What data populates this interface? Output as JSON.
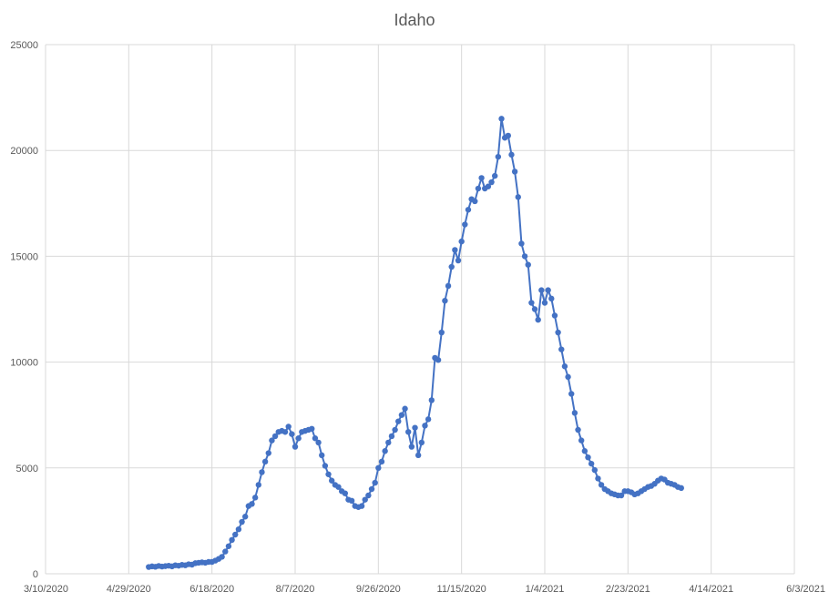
{
  "chart_data": {
    "type": "line",
    "title": "Idaho",
    "xlabel": "",
    "ylabel": "",
    "x_axis": {
      "type": "date",
      "min": "2020-03-10",
      "max": "2021-06-03",
      "ticks": [
        "2020-03-10",
        "2020-04-29",
        "2020-06-18",
        "2020-08-07",
        "2020-09-26",
        "2020-11-15",
        "2021-01-04",
        "2021-02-23",
        "2021-04-14",
        "2021-06-03"
      ],
      "tick_labels": [
        "3/10/2020",
        "4/29/2020",
        "6/18/2020",
        "8/7/2020",
        "9/26/2020",
        "11/15/2020",
        "1/4/2021",
        "2/23/2021",
        "4/14/2021",
        "6/3/2021"
      ]
    },
    "y_axis": {
      "min": 0,
      "max": 25000,
      "ticks": [
        0,
        5000,
        10000,
        15000,
        20000,
        25000
      ],
      "tick_labels": [
        "0",
        "5000",
        "10000",
        "15000",
        "20000",
        "25000"
      ]
    },
    "grid": true,
    "legend": "none",
    "colors": {
      "series": "#4472c4",
      "grid": "#d9d9d9",
      "text": "#595959"
    },
    "series": [
      {
        "marker": "circle",
        "points": [
          [
            "2020-05-11",
            320
          ],
          [
            "2020-05-13",
            350
          ],
          [
            "2020-05-15",
            330
          ],
          [
            "2020-05-17",
            370
          ],
          [
            "2020-05-19",
            340
          ],
          [
            "2020-05-21",
            360
          ],
          [
            "2020-05-23",
            380
          ],
          [
            "2020-05-25",
            350
          ],
          [
            "2020-05-27",
            400
          ],
          [
            "2020-05-29",
            380
          ],
          [
            "2020-05-31",
            420
          ],
          [
            "2020-06-02",
            400
          ],
          [
            "2020-06-04",
            450
          ],
          [
            "2020-06-06",
            430
          ],
          [
            "2020-06-08",
            500
          ],
          [
            "2020-06-10",
            520
          ],
          [
            "2020-06-12",
            540
          ],
          [
            "2020-06-14",
            520
          ],
          [
            "2020-06-16",
            560
          ],
          [
            "2020-06-18",
            560
          ],
          [
            "2020-06-20",
            620
          ],
          [
            "2020-06-22",
            700
          ],
          [
            "2020-06-24",
            800
          ],
          [
            "2020-06-26",
            1050
          ],
          [
            "2020-06-28",
            1300
          ],
          [
            "2020-06-30",
            1600
          ],
          [
            "2020-07-02",
            1850
          ],
          [
            "2020-07-04",
            2100
          ],
          [
            "2020-07-06",
            2450
          ],
          [
            "2020-07-08",
            2700
          ],
          [
            "2020-07-10",
            3200
          ],
          [
            "2020-07-12",
            3300
          ],
          [
            "2020-07-14",
            3600
          ],
          [
            "2020-07-16",
            4200
          ],
          [
            "2020-07-18",
            4800
          ],
          [
            "2020-07-20",
            5300
          ],
          [
            "2020-07-22",
            5700
          ],
          [
            "2020-07-24",
            6300
          ],
          [
            "2020-07-26",
            6500
          ],
          [
            "2020-07-28",
            6700
          ],
          [
            "2020-07-30",
            6750
          ],
          [
            "2020-08-01",
            6700
          ],
          [
            "2020-08-03",
            6950
          ],
          [
            "2020-08-05",
            6600
          ],
          [
            "2020-08-07",
            6000
          ],
          [
            "2020-08-09",
            6400
          ],
          [
            "2020-08-11",
            6700
          ],
          [
            "2020-08-13",
            6750
          ],
          [
            "2020-08-15",
            6800
          ],
          [
            "2020-08-17",
            6850
          ],
          [
            "2020-08-19",
            6400
          ],
          [
            "2020-08-21",
            6200
          ],
          [
            "2020-08-23",
            5600
          ],
          [
            "2020-08-25",
            5100
          ],
          [
            "2020-08-27",
            4700
          ],
          [
            "2020-08-29",
            4400
          ],
          [
            "2020-08-31",
            4200
          ],
          [
            "2020-09-02",
            4100
          ],
          [
            "2020-09-04",
            3900
          ],
          [
            "2020-09-06",
            3800
          ],
          [
            "2020-09-08",
            3500
          ],
          [
            "2020-09-10",
            3450
          ],
          [
            "2020-09-12",
            3200
          ],
          [
            "2020-09-14",
            3150
          ],
          [
            "2020-09-16",
            3200
          ],
          [
            "2020-09-18",
            3500
          ],
          [
            "2020-09-20",
            3700
          ],
          [
            "2020-09-22",
            4000
          ],
          [
            "2020-09-24",
            4300
          ],
          [
            "2020-09-26",
            5000
          ],
          [
            "2020-09-28",
            5300
          ],
          [
            "2020-09-30",
            5800
          ],
          [
            "2020-10-02",
            6200
          ],
          [
            "2020-10-04",
            6500
          ],
          [
            "2020-10-06",
            6800
          ],
          [
            "2020-10-08",
            7200
          ],
          [
            "2020-10-10",
            7500
          ],
          [
            "2020-10-12",
            7800
          ],
          [
            "2020-10-14",
            6700
          ],
          [
            "2020-10-16",
            6000
          ],
          [
            "2020-10-18",
            6900
          ],
          [
            "2020-10-20",
            5600
          ],
          [
            "2020-10-22",
            6200
          ],
          [
            "2020-10-24",
            7000
          ],
          [
            "2020-10-26",
            7300
          ],
          [
            "2020-10-28",
            8200
          ],
          [
            "2020-10-30",
            10200
          ],
          [
            "2020-11-01",
            10100
          ],
          [
            "2020-11-03",
            11400
          ],
          [
            "2020-11-05",
            12900
          ],
          [
            "2020-11-07",
            13600
          ],
          [
            "2020-11-09",
            14500
          ],
          [
            "2020-11-11",
            15300
          ],
          [
            "2020-11-13",
            14800
          ],
          [
            "2020-11-15",
            15700
          ],
          [
            "2020-11-17",
            16500
          ],
          [
            "2020-11-19",
            17200
          ],
          [
            "2020-11-21",
            17700
          ],
          [
            "2020-11-23",
            17600
          ],
          [
            "2020-11-25",
            18200
          ],
          [
            "2020-11-27",
            18700
          ],
          [
            "2020-11-29",
            18200
          ],
          [
            "2020-12-01",
            18300
          ],
          [
            "2020-12-03",
            18500
          ],
          [
            "2020-12-05",
            18800
          ],
          [
            "2020-12-07",
            19700
          ],
          [
            "2020-12-09",
            21500
          ],
          [
            "2020-12-11",
            20600
          ],
          [
            "2020-12-13",
            20700
          ],
          [
            "2020-12-15",
            19800
          ],
          [
            "2020-12-17",
            19000
          ],
          [
            "2020-12-19",
            17800
          ],
          [
            "2020-12-21",
            15600
          ],
          [
            "2020-12-23",
            15000
          ],
          [
            "2020-12-25",
            14600
          ],
          [
            "2020-12-27",
            12800
          ],
          [
            "2020-12-29",
            12500
          ],
          [
            "2020-12-31",
            12000
          ],
          [
            "2021-01-02",
            13400
          ],
          [
            "2021-01-04",
            12800
          ],
          [
            "2021-01-06",
            13400
          ],
          [
            "2021-01-08",
            13000
          ],
          [
            "2021-01-10",
            12200
          ],
          [
            "2021-01-12",
            11400
          ],
          [
            "2021-01-14",
            10600
          ],
          [
            "2021-01-16",
            9800
          ],
          [
            "2021-01-18",
            9300
          ],
          [
            "2021-01-20",
            8500
          ],
          [
            "2021-01-22",
            7600
          ],
          [
            "2021-01-24",
            6800
          ],
          [
            "2021-01-26",
            6300
          ],
          [
            "2021-01-28",
            5800
          ],
          [
            "2021-01-30",
            5500
          ],
          [
            "2021-02-01",
            5200
          ],
          [
            "2021-02-03",
            4900
          ],
          [
            "2021-02-05",
            4500
          ],
          [
            "2021-02-07",
            4200
          ],
          [
            "2021-02-09",
            4000
          ],
          [
            "2021-02-11",
            3900
          ],
          [
            "2021-02-13",
            3800
          ],
          [
            "2021-02-15",
            3750
          ],
          [
            "2021-02-17",
            3700
          ],
          [
            "2021-02-19",
            3700
          ],
          [
            "2021-02-21",
            3900
          ],
          [
            "2021-02-23",
            3900
          ],
          [
            "2021-02-25",
            3850
          ],
          [
            "2021-02-27",
            3750
          ],
          [
            "2021-03-01",
            3800
          ],
          [
            "2021-03-03",
            3900
          ],
          [
            "2021-03-05",
            4000
          ],
          [
            "2021-03-07",
            4100
          ],
          [
            "2021-03-09",
            4150
          ],
          [
            "2021-03-11",
            4250
          ],
          [
            "2021-03-13",
            4400
          ],
          [
            "2021-03-15",
            4500
          ],
          [
            "2021-03-17",
            4450
          ],
          [
            "2021-03-19",
            4300
          ],
          [
            "2021-03-21",
            4250
          ],
          [
            "2021-03-23",
            4200
          ],
          [
            "2021-03-25",
            4100
          ],
          [
            "2021-03-27",
            4050
          ]
        ]
      }
    ]
  }
}
